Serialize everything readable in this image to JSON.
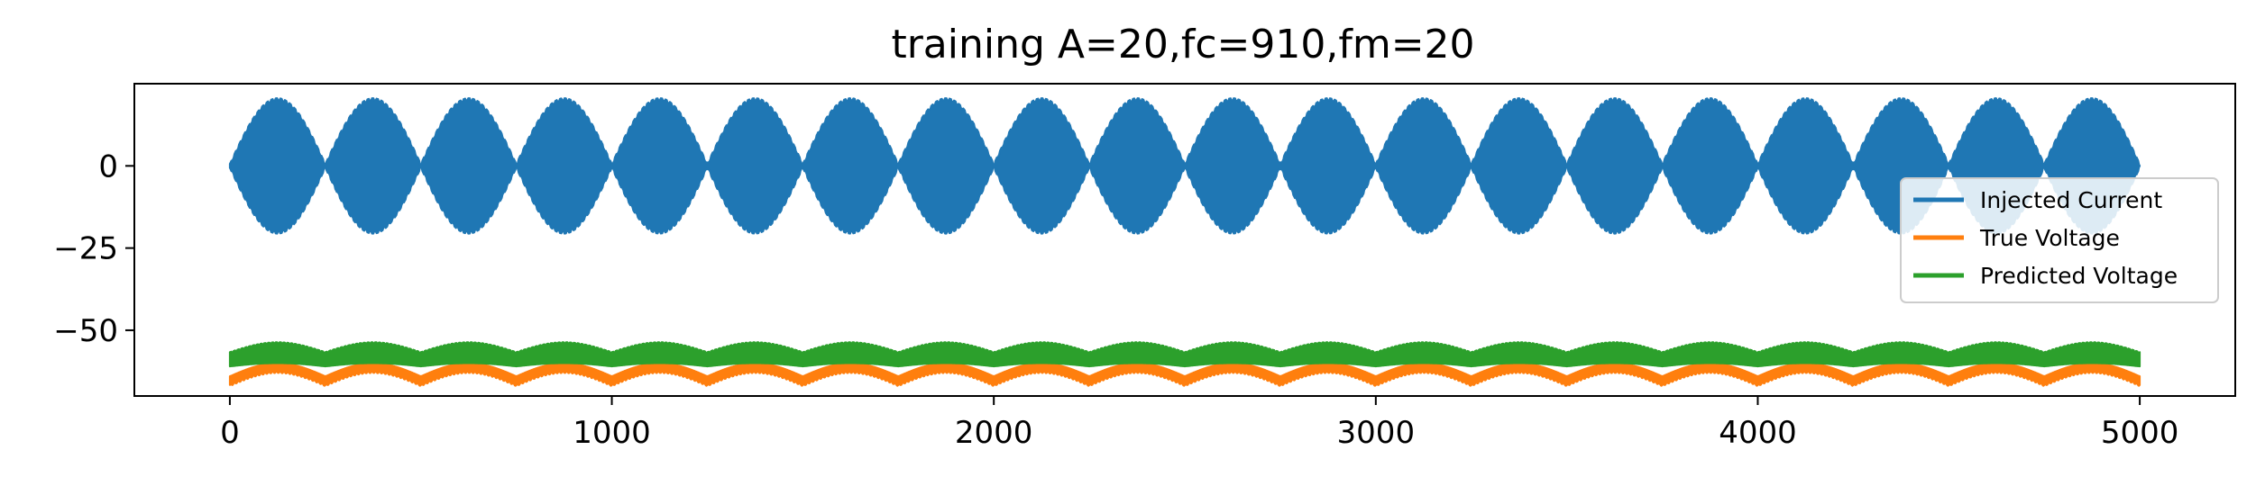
{
  "chart_data": {
    "type": "line",
    "title": "training A=20,fc=910,fm=20",
    "xlabel": "",
    "ylabel": "",
    "xlim": [
      -250,
      5250
    ],
    "ylim": [
      -70,
      25
    ],
    "x_ticks": [
      0,
      1000,
      2000,
      3000,
      4000,
      5000
    ],
    "x_tick_labels": [
      "0",
      "1000",
      "2000",
      "3000",
      "4000",
      "5000"
    ],
    "y_ticks": [
      0,
      -25,
      -50
    ],
    "y_tick_labels": [
      "0",
      "−25",
      "−50"
    ],
    "grid": false,
    "legend_position": "center-right",
    "x_range": [
      0,
      5000
    ],
    "envelope_period": 250,
    "series": [
      {
        "name": "Injected Current",
        "color": "#1f77b4",
        "style": "am_dense",
        "center": 0,
        "amplitude": 20,
        "envelope": "abs_sine"
      },
      {
        "name": "True Voltage",
        "color": "#ff7f0e",
        "style": "band",
        "min_range": [
          -64,
          -60
        ],
        "max_range": [
          -67,
          -63
        ],
        "envelope": "abs_sine"
      },
      {
        "name": "Predicted Voltage",
        "color": "#2ca02c",
        "style": "band",
        "min_range": [
          -61,
          -60
        ],
        "max_range": [
          -57,
          -54
        ],
        "envelope": "abs_sine"
      }
    ]
  }
}
